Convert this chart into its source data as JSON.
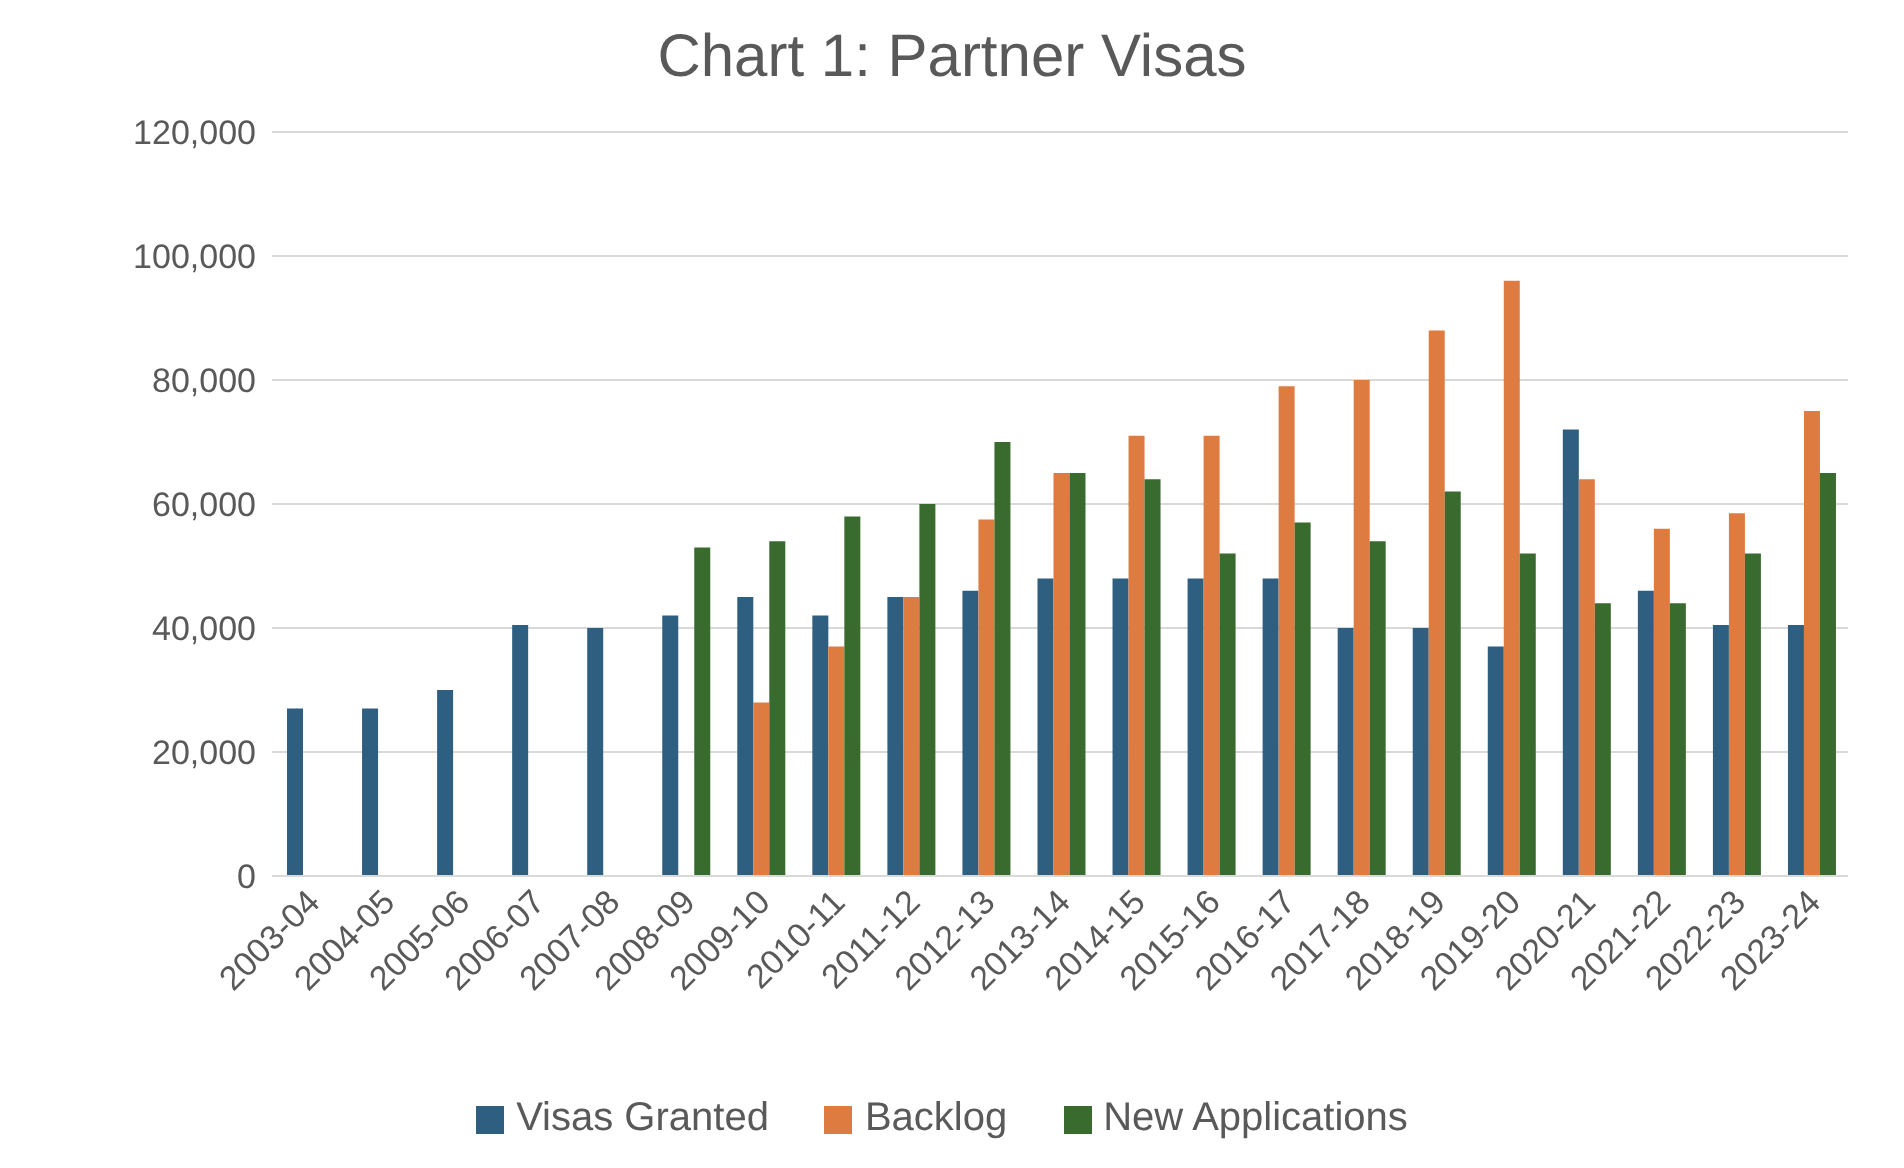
{
  "chart_data": {
    "type": "bar",
    "title": "Chart 1: Partner Visas",
    "categories": [
      "2003-04",
      "2004-05",
      "2005-06",
      "2006-07",
      "2007-08",
      "2008-09",
      "2009-10",
      "2010-11",
      "2011-12",
      "2012-13",
      "2013-14",
      "2014-15",
      "2015-16",
      "2016-17",
      "2017-18",
      "2018-19",
      "2019-20",
      "2020-21",
      "2021-22",
      "2022-23",
      "2023-24"
    ],
    "series": [
      {
        "name": "Visas Granted",
        "color": "#2e5f80",
        "values": [
          27000,
          27000,
          30000,
          40500,
          40000,
          42000,
          45000,
          42000,
          45000,
          46000,
          48000,
          48000,
          48000,
          48000,
          40000,
          40000,
          37000,
          72000,
          46000,
          40500,
          40500
        ]
      },
      {
        "name": "Backlog",
        "color": "#de7b40",
        "values": [
          null,
          null,
          null,
          null,
          null,
          null,
          28000,
          37000,
          45000,
          57500,
          65000,
          71000,
          71000,
          79000,
          80000,
          88000,
          96000,
          64000,
          56000,
          58500,
          75000
        ]
      },
      {
        "name": "New Applications",
        "color": "#3a6b2e",
        "values": [
          null,
          null,
          null,
          null,
          null,
          53000,
          54000,
          58000,
          60000,
          70000,
          65000,
          64000,
          52000,
          57000,
          54000,
          62000,
          52000,
          44000,
          44000,
          52000,
          65000
        ]
      }
    ],
    "ylim": [
      0,
      120000
    ],
    "yticks": [
      0,
      {
        "value": 20000,
        "label": "20,000"
      },
      {
        "value": 40000,
        "label": "40,000"
      },
      {
        "value": 60000,
        "label": "60,000"
      },
      {
        "value": 80000,
        "label": "80,000"
      },
      {
        "value": 100000,
        "label": "100,000"
      },
      {
        "value": 120000,
        "label": "120,000"
      }
    ],
    "grid": "y",
    "legend": "bottom"
  }
}
